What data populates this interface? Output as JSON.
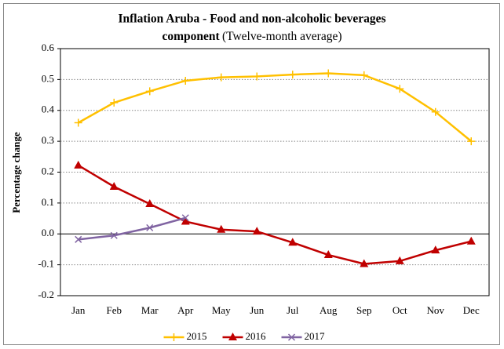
{
  "chart_data": {
    "type": "line",
    "title": [
      "Inflation Aruba - Food and non-alcoholic beverages",
      "component"
    ],
    "subtitle": "(Twelve-month average)",
    "y_label": "Percentage change",
    "categories": [
      "Jan",
      "Feb",
      "Mar",
      "Apr",
      "May",
      "Jun",
      "Jul",
      "Aug",
      "Sep",
      "Oct",
      "Nov",
      "Dec"
    ],
    "series": [
      {
        "name": "2015",
        "color": "#FFC000",
        "marker": "plus",
        "values": [
          0.36,
          0.425,
          0.462,
          0.496,
          0.507,
          0.51,
          0.516,
          0.52,
          0.514,
          0.47,
          0.395,
          0.3
        ]
      },
      {
        "name": "2016",
        "color": "#C00000",
        "marker": "triangle",
        "values": [
          0.222,
          0.153,
          0.097,
          0.04,
          0.014,
          0.008,
          -0.028,
          -0.068,
          -0.097,
          -0.088,
          -0.053,
          -0.024
        ]
      },
      {
        "name": "2017",
        "color": "#8064A2",
        "marker": "x",
        "values": [
          -0.018,
          -0.005,
          0.02,
          0.052,
          null,
          null,
          null,
          null,
          null,
          null,
          null,
          null
        ]
      }
    ],
    "ylim": [
      -0.2,
      0.6
    ],
    "yticks": [
      -0.2,
      -0.1,
      {
        "value": 0,
        "label": "0.0"
      },
      0.1,
      0.2,
      0.3,
      0.4,
      0.5,
      0.6
    ],
    "grid": true,
    "legend": "bottom"
  }
}
